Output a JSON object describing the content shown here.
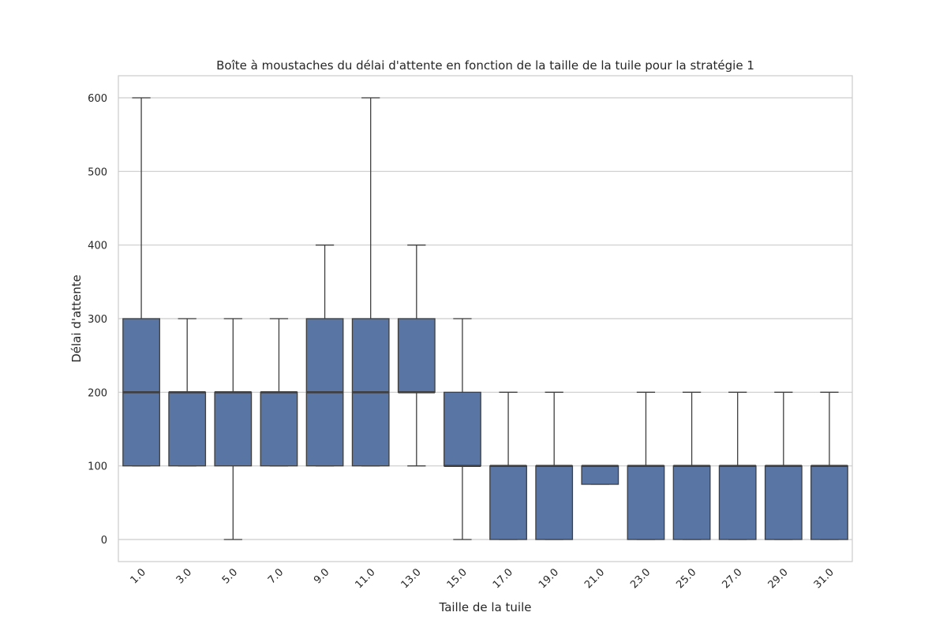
{
  "chart_data": {
    "type": "box",
    "title": "Boîte à moustaches du délai d'attente en fonction de la taille de la tuile pour la stratégie 1",
    "xlabel": "Taille de la tuile",
    "ylabel": "Délai d'attente",
    "ylim": [
      -30,
      630
    ],
    "yticks": [
      0,
      100,
      200,
      300,
      400,
      500,
      600
    ],
    "grid": true,
    "colors": {
      "box": "#5875a4",
      "line": "#3f3f3f",
      "grid": "#cccccc",
      "frame": "#cccccc"
    },
    "categories": [
      "1.0",
      "3.0",
      "5.0",
      "7.0",
      "9.0",
      "11.0",
      "13.0",
      "15.0",
      "17.0",
      "19.0",
      "21.0",
      "23.0",
      "25.0",
      "27.0",
      "29.0",
      "31.0"
    ],
    "boxes": [
      {
        "min": 100,
        "q1": 100,
        "median": 200,
        "q3": 300,
        "max": 600
      },
      {
        "min": 100,
        "q1": 100,
        "median": 200,
        "q3": 200,
        "max": 300
      },
      {
        "min": 0,
        "q1": 100,
        "median": 200,
        "q3": 200,
        "max": 300
      },
      {
        "min": 100,
        "q1": 100,
        "median": 200,
        "q3": 200,
        "max": 300
      },
      {
        "min": 100,
        "q1": 100,
        "median": 200,
        "q3": 300,
        "max": 400
      },
      {
        "min": 100,
        "q1": 100,
        "median": 200,
        "q3": 300,
        "max": 600
      },
      {
        "min": 100,
        "q1": 200,
        "median": 200,
        "q3": 300,
        "max": 400
      },
      {
        "min": 0,
        "q1": 100,
        "median": 100,
        "q3": 200,
        "max": 300
      },
      {
        "min": 0,
        "q1": 0,
        "median": 100,
        "q3": 100,
        "max": 200
      },
      {
        "min": 0,
        "q1": 0,
        "median": 100,
        "q3": 100,
        "max": 200
      },
      {
        "min": 75,
        "q1": 75,
        "median": 100,
        "q3": 100,
        "max": 100
      },
      {
        "min": 0,
        "q1": 0,
        "median": 100,
        "q3": 100,
        "max": 200
      },
      {
        "min": 0,
        "q1": 0,
        "median": 100,
        "q3": 100,
        "max": 200
      },
      {
        "min": 0,
        "q1": 0,
        "median": 100,
        "q3": 100,
        "max": 200
      },
      {
        "min": 0,
        "q1": 0,
        "median": 100,
        "q3": 100,
        "max": 200
      },
      {
        "min": 0,
        "q1": 0,
        "median": 100,
        "q3": 100,
        "max": 200
      }
    ]
  }
}
